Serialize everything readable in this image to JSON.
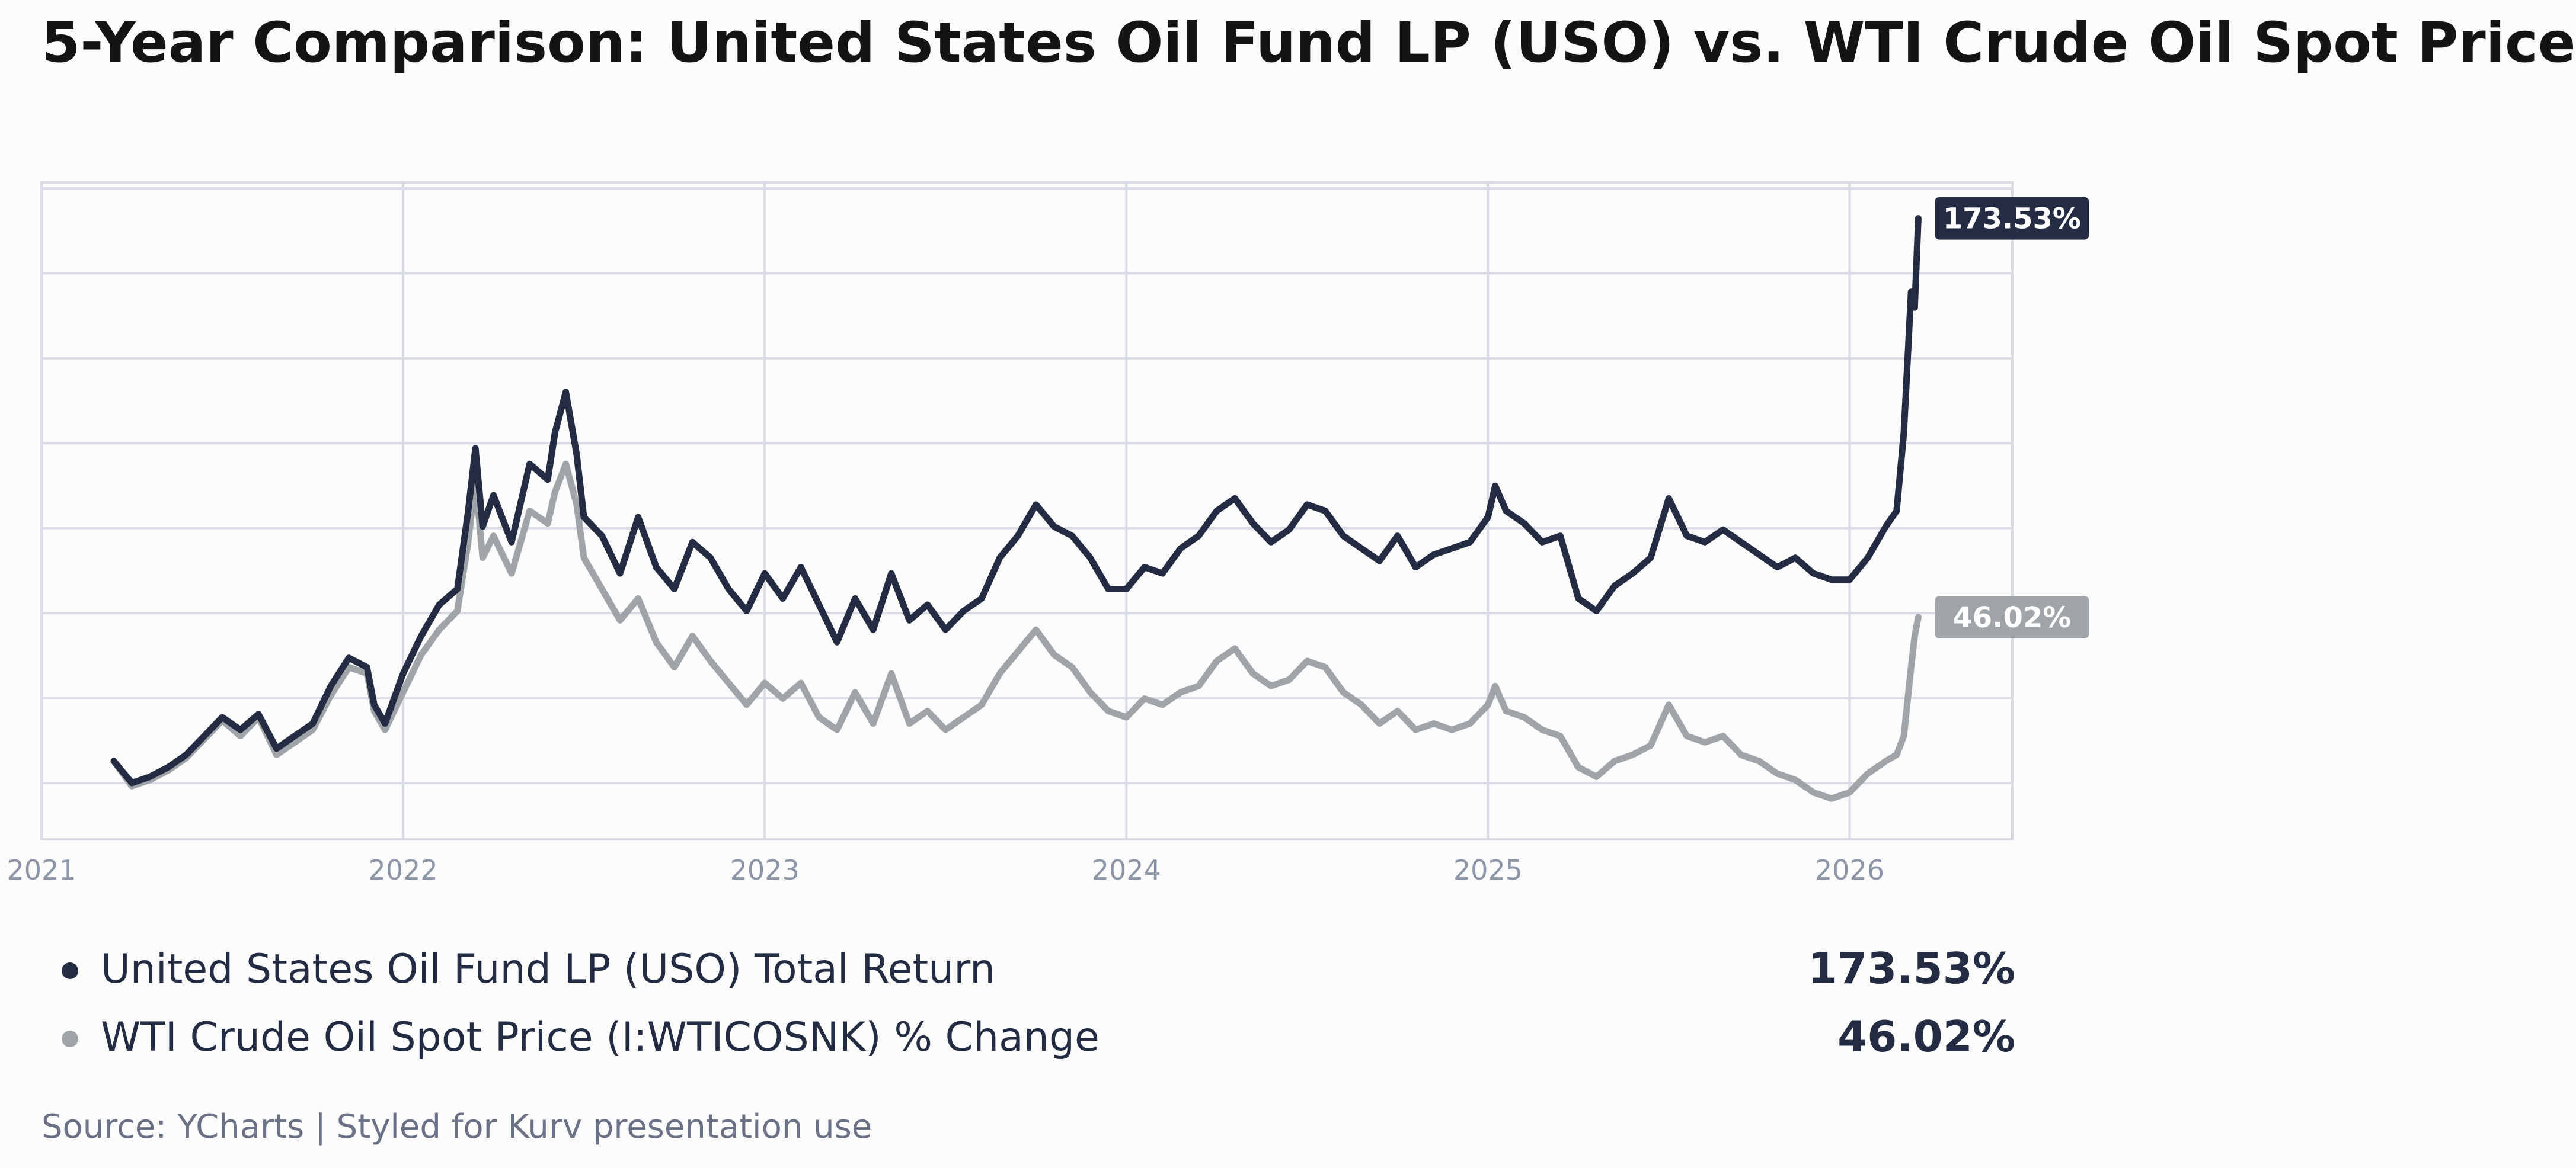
{
  "title": "5-Year Comparison: United States Oil Fund LP (USO) vs. WTI Crude Oil Spot Price",
  "source": "Source: YCharts | Styled for Kurv presentation use",
  "colors": {
    "uso": "#232c43",
    "wti": "#9ea4a8",
    "grid": "#d9dbe6",
    "tick": "#8c95a8",
    "background": "#fcfcfc"
  },
  "legend": [
    {
      "label": "United States Oil Fund LP (USO) Total Return",
      "value": "173.53%"
    },
    {
      "label": "WTI Crude Oil Spot Price (I:WTICOSNK) % Change",
      "value": "46.02%"
    }
  ],
  "chart_data": {
    "type": "line",
    "title": "5-Year Comparison: United States Oil Fund LP (USO) vs. WTI Crude Oil Spot Price",
    "xlabel": "",
    "ylabel": "",
    "x_tick_labels": [
      "2021",
      "2022",
      "2023",
      "2024",
      "2025",
      "2026"
    ],
    "x_range": [
      2021.0,
      2026.45
    ],
    "y_range": [
      -25,
      185
    ],
    "y_tick_labels_visible": false,
    "grid": true,
    "series": [
      {
        "name": "United States Oil Fund LP (USO) Total Return",
        "end_label": "173.53%",
        "points": [
          [
            2021.2,
            0
          ],
          [
            2021.25,
            -7
          ],
          [
            2021.3,
            -5
          ],
          [
            2021.35,
            -2
          ],
          [
            2021.4,
            2
          ],
          [
            2021.45,
            8
          ],
          [
            2021.5,
            14
          ],
          [
            2021.55,
            10
          ],
          [
            2021.6,
            15
          ],
          [
            2021.65,
            4
          ],
          [
            2021.7,
            8
          ],
          [
            2021.75,
            12
          ],
          [
            2021.8,
            24
          ],
          [
            2021.85,
            33
          ],
          [
            2021.9,
            30
          ],
          [
            2021.92,
            18
          ],
          [
            2021.95,
            12
          ],
          [
            2022.0,
            28
          ],
          [
            2022.05,
            40
          ],
          [
            2022.1,
            50
          ],
          [
            2022.15,
            55
          ],
          [
            2022.18,
            80
          ],
          [
            2022.2,
            100
          ],
          [
            2022.22,
            75
          ],
          [
            2022.25,
            85
          ],
          [
            2022.3,
            70
          ],
          [
            2022.35,
            95
          ],
          [
            2022.4,
            90
          ],
          [
            2022.42,
            105
          ],
          [
            2022.45,
            118
          ],
          [
            2022.48,
            98
          ],
          [
            2022.5,
            78
          ],
          [
            2022.55,
            72
          ],
          [
            2022.6,
            60
          ],
          [
            2022.65,
            78
          ],
          [
            2022.7,
            62
          ],
          [
            2022.75,
            55
          ],
          [
            2022.8,
            70
          ],
          [
            2022.85,
            65
          ],
          [
            2022.9,
            55
          ],
          [
            2022.95,
            48
          ],
          [
            2023.0,
            60
          ],
          [
            2023.05,
            52
          ],
          [
            2023.1,
            62
          ],
          [
            2023.15,
            50
          ],
          [
            2023.2,
            38
          ],
          [
            2023.25,
            52
          ],
          [
            2023.3,
            42
          ],
          [
            2023.35,
            60
          ],
          [
            2023.4,
            45
          ],
          [
            2023.45,
            50
          ],
          [
            2023.5,
            42
          ],
          [
            2023.55,
            48
          ],
          [
            2023.6,
            52
          ],
          [
            2023.65,
            65
          ],
          [
            2023.7,
            72
          ],
          [
            2023.75,
            82
          ],
          [
            2023.8,
            75
          ],
          [
            2023.85,
            72
          ],
          [
            2023.9,
            65
          ],
          [
            2023.95,
            55
          ],
          [
            2024.0,
            55
          ],
          [
            2024.05,
            62
          ],
          [
            2024.1,
            60
          ],
          [
            2024.15,
            68
          ],
          [
            2024.2,
            72
          ],
          [
            2024.25,
            80
          ],
          [
            2024.3,
            84
          ],
          [
            2024.35,
            76
          ],
          [
            2024.4,
            70
          ],
          [
            2024.45,
            74
          ],
          [
            2024.5,
            82
          ],
          [
            2024.55,
            80
          ],
          [
            2024.6,
            72
          ],
          [
            2024.65,
            68
          ],
          [
            2024.7,
            64
          ],
          [
            2024.75,
            72
          ],
          [
            2024.8,
            62
          ],
          [
            2024.85,
            66
          ],
          [
            2024.9,
            68
          ],
          [
            2024.95,
            70
          ],
          [
            2025.0,
            78
          ],
          [
            2025.02,
            88
          ],
          [
            2025.05,
            80
          ],
          [
            2025.1,
            76
          ],
          [
            2025.15,
            70
          ],
          [
            2025.2,
            72
          ],
          [
            2025.25,
            52
          ],
          [
            2025.3,
            48
          ],
          [
            2025.35,
            56
          ],
          [
            2025.4,
            60
          ],
          [
            2025.45,
            65
          ],
          [
            2025.5,
            84
          ],
          [
            2025.55,
            72
          ],
          [
            2025.6,
            70
          ],
          [
            2025.65,
            74
          ],
          [
            2025.7,
            70
          ],
          [
            2025.75,
            66
          ],
          [
            2025.8,
            62
          ],
          [
            2025.85,
            65
          ],
          [
            2025.9,
            60
          ],
          [
            2025.95,
            58
          ],
          [
            2026.0,
            58
          ],
          [
            2026.05,
            65
          ],
          [
            2026.1,
            75
          ],
          [
            2026.13,
            80
          ],
          [
            2026.15,
            105
          ],
          [
            2026.17,
            150
          ],
          [
            2026.18,
            145
          ],
          [
            2026.19,
            173.53
          ]
        ]
      },
      {
        "name": "WTI Crude Oil Spot Price (I:WTICOSNK) % Change",
        "end_label": "46.02%",
        "points": [
          [
            2021.2,
            0
          ],
          [
            2021.25,
            -8
          ],
          [
            2021.3,
            -6
          ],
          [
            2021.35,
            -3
          ],
          [
            2021.4,
            1
          ],
          [
            2021.45,
            7
          ],
          [
            2021.5,
            13
          ],
          [
            2021.55,
            8
          ],
          [
            2021.6,
            14
          ],
          [
            2021.65,
            2
          ],
          [
            2021.7,
            6
          ],
          [
            2021.75,
            10
          ],
          [
            2021.8,
            21
          ],
          [
            2021.85,
            30
          ],
          [
            2021.9,
            28
          ],
          [
            2021.92,
            16
          ],
          [
            2021.95,
            10
          ],
          [
            2022.0,
            22
          ],
          [
            2022.05,
            34
          ],
          [
            2022.1,
            42
          ],
          [
            2022.15,
            48
          ],
          [
            2022.18,
            70
          ],
          [
            2022.2,
            90
          ],
          [
            2022.22,
            65
          ],
          [
            2022.25,
            72
          ],
          [
            2022.3,
            60
          ],
          [
            2022.35,
            80
          ],
          [
            2022.4,
            76
          ],
          [
            2022.42,
            86
          ],
          [
            2022.45,
            95
          ],
          [
            2022.48,
            82
          ],
          [
            2022.5,
            65
          ],
          [
            2022.55,
            55
          ],
          [
            2022.6,
            45
          ],
          [
            2022.65,
            52
          ],
          [
            2022.7,
            38
          ],
          [
            2022.75,
            30
          ],
          [
            2022.8,
            40
          ],
          [
            2022.85,
            32
          ],
          [
            2022.9,
            25
          ],
          [
            2022.95,
            18
          ],
          [
            2023.0,
            25
          ],
          [
            2023.05,
            20
          ],
          [
            2023.1,
            25
          ],
          [
            2023.15,
            14
          ],
          [
            2023.2,
            10
          ],
          [
            2023.25,
            22
          ],
          [
            2023.3,
            12
          ],
          [
            2023.35,
            28
          ],
          [
            2023.4,
            12
          ],
          [
            2023.45,
            16
          ],
          [
            2023.5,
            10
          ],
          [
            2023.55,
            14
          ],
          [
            2023.6,
            18
          ],
          [
            2023.65,
            28
          ],
          [
            2023.7,
            35
          ],
          [
            2023.75,
            42
          ],
          [
            2023.8,
            34
          ],
          [
            2023.85,
            30
          ],
          [
            2023.9,
            22
          ],
          [
            2023.95,
            16
          ],
          [
            2024.0,
            14
          ],
          [
            2024.05,
            20
          ],
          [
            2024.1,
            18
          ],
          [
            2024.15,
            22
          ],
          [
            2024.2,
            24
          ],
          [
            2024.25,
            32
          ],
          [
            2024.3,
            36
          ],
          [
            2024.35,
            28
          ],
          [
            2024.4,
            24
          ],
          [
            2024.45,
            26
          ],
          [
            2024.5,
            32
          ],
          [
            2024.55,
            30
          ],
          [
            2024.6,
            22
          ],
          [
            2024.65,
            18
          ],
          [
            2024.7,
            12
          ],
          [
            2024.75,
            16
          ],
          [
            2024.8,
            10
          ],
          [
            2024.85,
            12
          ],
          [
            2024.9,
            10
          ],
          [
            2024.95,
            12
          ],
          [
            2025.0,
            18
          ],
          [
            2025.02,
            24
          ],
          [
            2025.05,
            16
          ],
          [
            2025.1,
            14
          ],
          [
            2025.15,
            10
          ],
          [
            2025.2,
            8
          ],
          [
            2025.25,
            -2
          ],
          [
            2025.3,
            -5
          ],
          [
            2025.35,
            0
          ],
          [
            2025.4,
            2
          ],
          [
            2025.45,
            5
          ],
          [
            2025.5,
            18
          ],
          [
            2025.55,
            8
          ],
          [
            2025.6,
            6
          ],
          [
            2025.65,
            8
          ],
          [
            2025.7,
            2
          ],
          [
            2025.75,
            0
          ],
          [
            2025.8,
            -4
          ],
          [
            2025.85,
            -6
          ],
          [
            2025.9,
            -10
          ],
          [
            2025.95,
            -12
          ],
          [
            2026.0,
            -10
          ],
          [
            2026.05,
            -4
          ],
          [
            2026.1,
            0
          ],
          [
            2026.13,
            2
          ],
          [
            2026.15,
            8
          ],
          [
            2026.17,
            30
          ],
          [
            2026.18,
            40
          ],
          [
            2026.19,
            46.02
          ]
        ]
      }
    ]
  }
}
